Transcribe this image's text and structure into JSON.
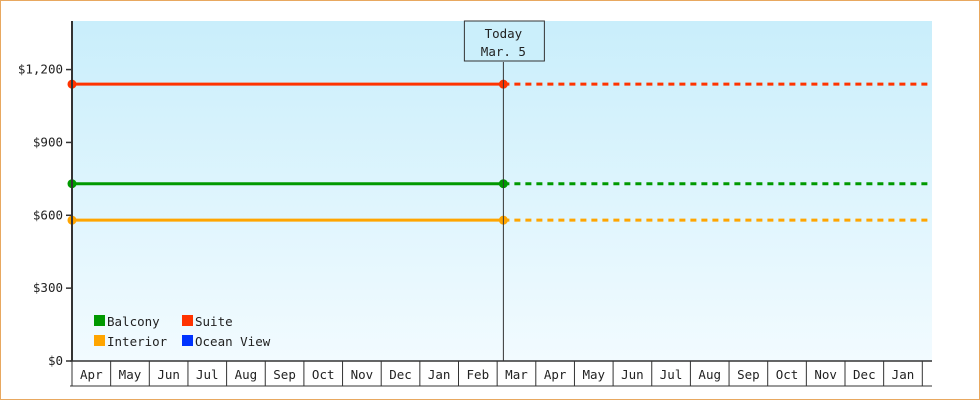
{
  "chart_data": {
    "type": "line",
    "title": "",
    "xlabel": "",
    "ylabel": "",
    "ylim": [
      0,
      1400
    ],
    "yticks": [
      0,
      300,
      600,
      900,
      1200
    ],
    "ytick_labels": [
      "$0",
      "$300",
      "$600",
      "$900",
      "$1,200"
    ],
    "categories": [
      "Apr",
      "May",
      "Jun",
      "Jul",
      "Aug",
      "Sep",
      "Oct",
      "Nov",
      "Dec",
      "Jan",
      "Feb",
      "Mar",
      "Apr",
      "May",
      "Jun",
      "Jul",
      "Aug",
      "Sep",
      "Oct",
      "Nov",
      "Dec",
      "Jan"
    ],
    "today": {
      "line1": "Today",
      "line2": "Mar. 5",
      "month_index": 11,
      "day": 5
    },
    "series": [
      {
        "name": "Balcony",
        "color": "#009900",
        "values": [
          730,
          730
        ],
        "x": [
          "Apr",
          "Mar. 5"
        ],
        "projected": 730
      },
      {
        "name": "Suite",
        "color": "#ff3300",
        "values": [
          1140,
          1140
        ],
        "x": [
          "Apr",
          "Mar. 5"
        ],
        "projected": 1140
      },
      {
        "name": "Interior",
        "color": "#ffa500",
        "values": [
          580,
          580
        ],
        "x": [
          "Apr",
          "Mar. 5"
        ],
        "projected": 580
      },
      {
        "name": "Ocean View",
        "color": "#0033ff",
        "values": [],
        "x": []
      }
    ],
    "legend_placement": "bottom-left",
    "grid": false,
    "background_gradient": [
      "#c9eefb",
      "#f2fbff"
    ]
  }
}
